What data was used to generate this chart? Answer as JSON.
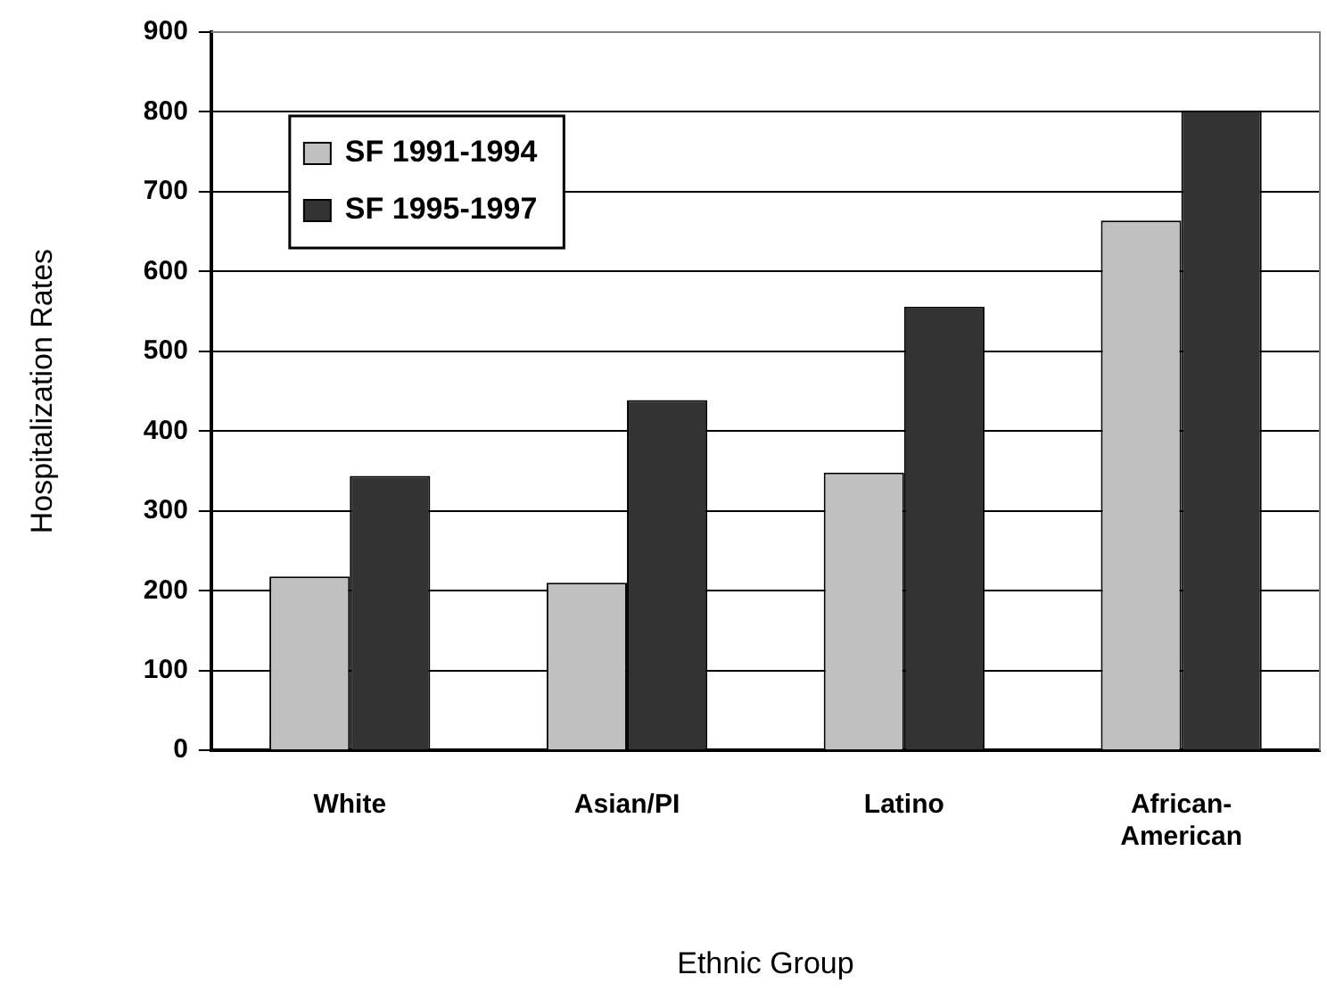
{
  "chart_data": {
    "type": "bar",
    "xlabel": "Ethnic Group",
    "ylabel": "Hospitalization Rates",
    "categories": [
      "White",
      "Asian/PI",
      "Latino",
      "African-American"
    ],
    "series": [
      {
        "name": "SF 1991-1994",
        "color": "#c0c0c0",
        "values": [
          218,
          210,
          348,
          664
        ]
      },
      {
        "name": "SF 1995-1997",
        "color": "#333333",
        "values": [
          344,
          439,
          556,
          802
        ]
      }
    ],
    "ylim": [
      0,
      900
    ],
    "yticks": [
      0,
      100,
      200,
      300,
      400,
      500,
      600,
      700,
      800,
      900
    ],
    "grid": "y",
    "legend": "top left"
  }
}
